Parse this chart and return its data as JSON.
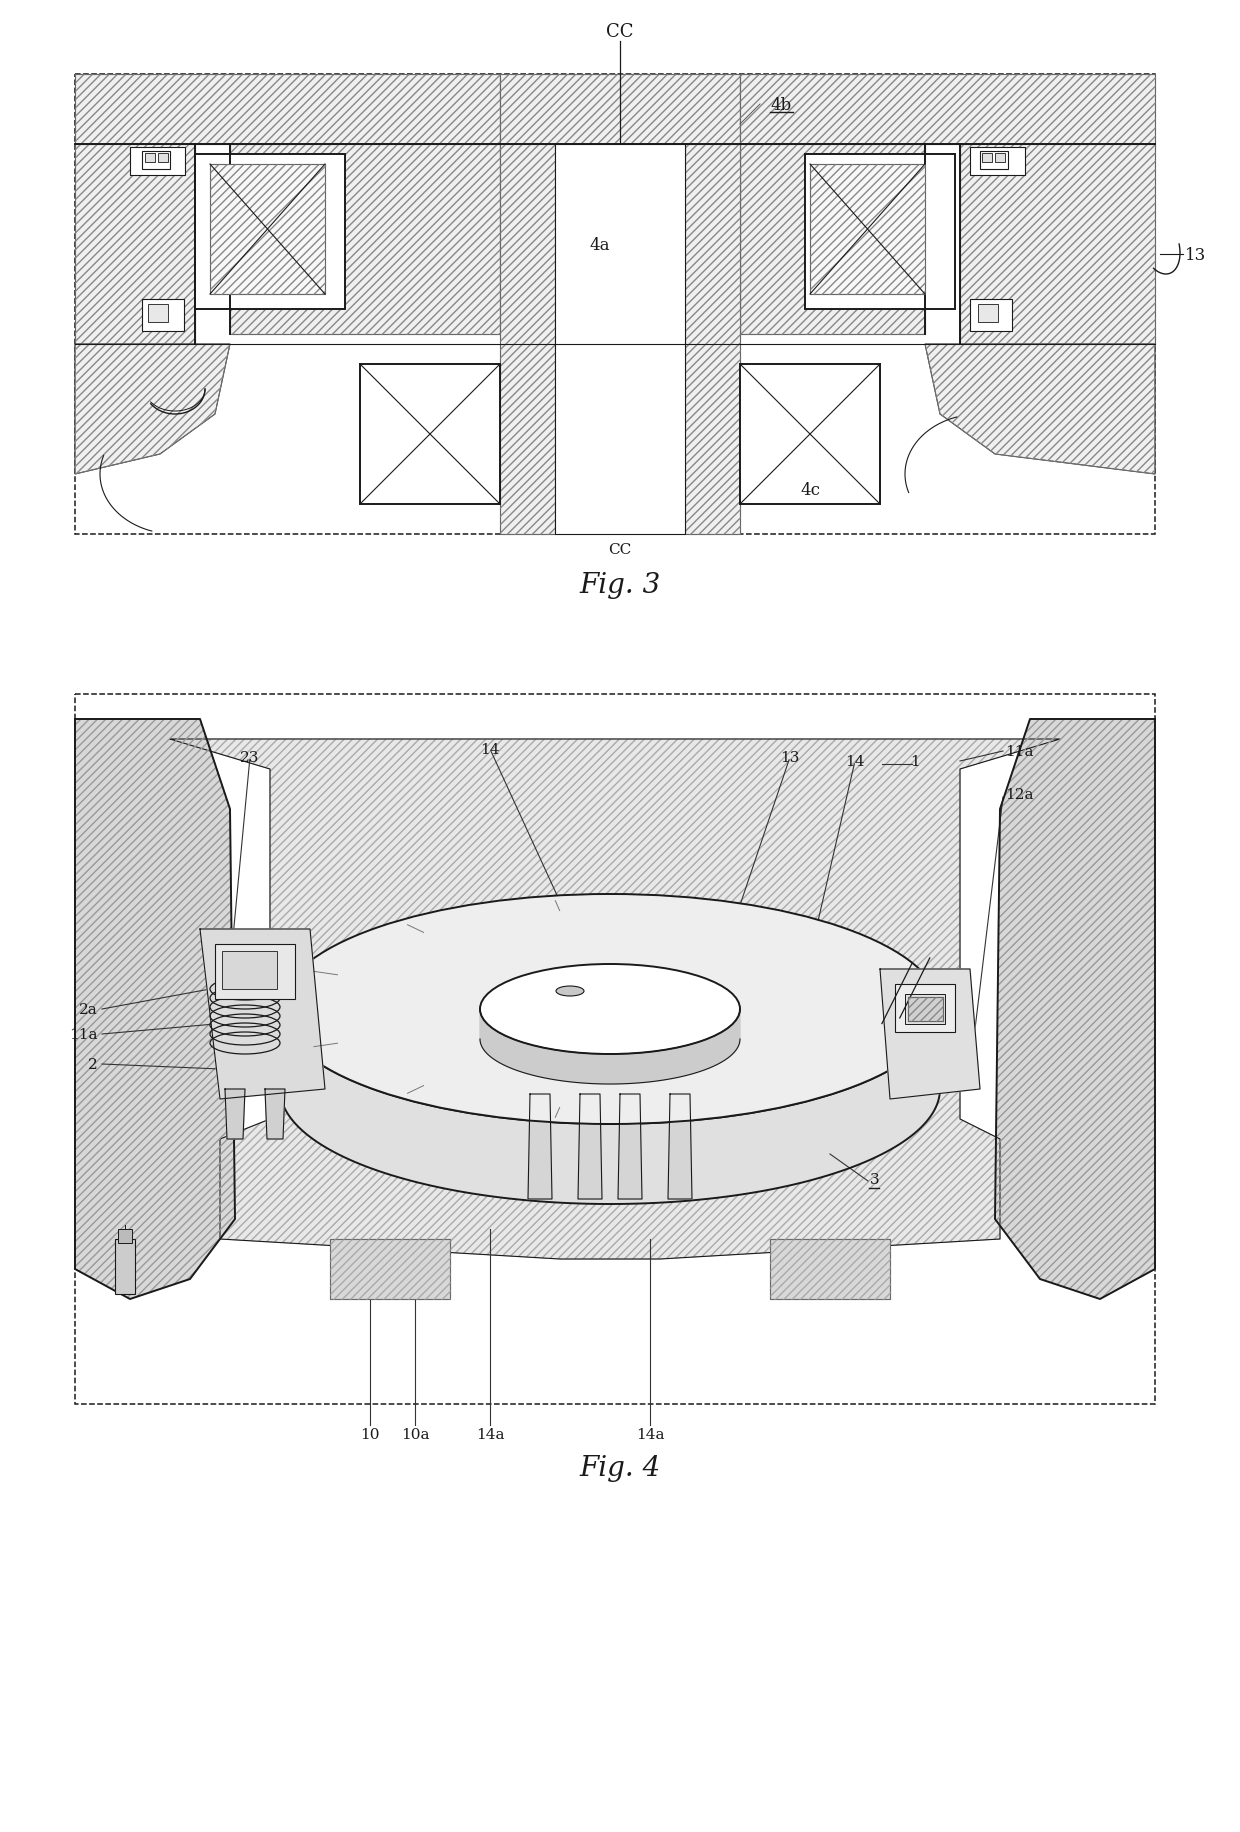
{
  "fig_width": 12.4,
  "fig_height": 18.33,
  "bg_color": "#ffffff",
  "line_color": "#1a1a1a",
  "fig3_title": "Fig. 3",
  "fig4_title": "Fig. 4",
  "cc_label": "CC"
}
